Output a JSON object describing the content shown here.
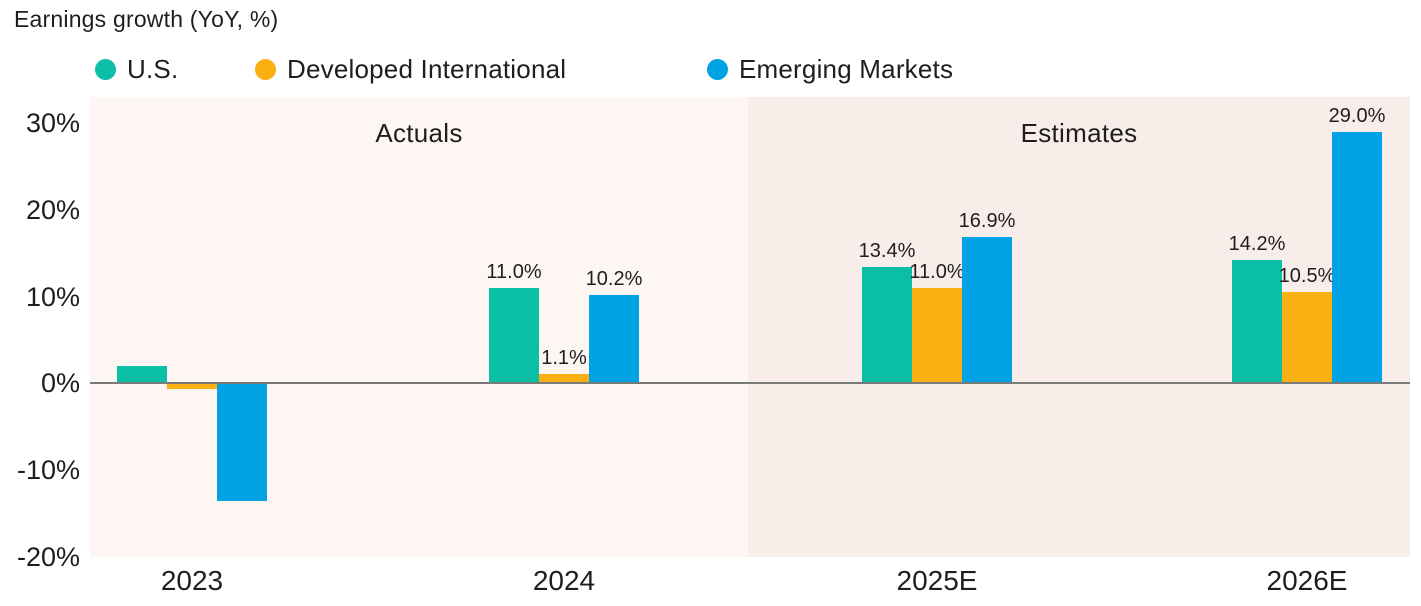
{
  "title": "Earnings growth (YoY, %)",
  "legend": [
    {
      "label": "U.S.",
      "color": "#0ABFA5"
    },
    {
      "label": "Developed International",
      "color": "#F9B013"
    },
    {
      "label": "Emerging Markets",
      "color": "#01A3E4"
    }
  ],
  "regions": [
    {
      "label": "Actuals",
      "bg": "#FDF6F3",
      "categories": [
        "2023",
        "2024"
      ]
    },
    {
      "label": "Estimates",
      "bg": "#F9EDE9",
      "categories": [
        "2025E",
        "2026E"
      ]
    }
  ],
  "chart_data": {
    "type": "bar",
    "title": "Earnings growth (YoY, %)",
    "categories": [
      "2023",
      "2024",
      "2025E",
      "2026E"
    ],
    "series": [
      {
        "name": "U.S.",
        "color": "#0ABFA5",
        "values": [
          2.0,
          11.0,
          13.4,
          14.2
        ],
        "labels": [
          "",
          "11.0%",
          "13.4%",
          "14.2%"
        ]
      },
      {
        "name": "Developed International",
        "color": "#F9B013",
        "values": [
          -0.6,
          1.1,
          11.0,
          10.5
        ],
        "labels": [
          "",
          "1.1%",
          "11.0%",
          "10.5%"
        ]
      },
      {
        "name": "Emerging Markets",
        "color": "#01A3E4",
        "values": [
          -13.5,
          10.2,
          16.9,
          29.0
        ],
        "labels": [
          "",
          "10.2%",
          "16.9%",
          "29.0%"
        ]
      }
    ],
    "y_ticks": [
      {
        "label": "30%",
        "value": 30
      },
      {
        "label": "20%",
        "value": 20
      },
      {
        "label": "10%",
        "value": 10
      },
      {
        "label": "0%",
        "value": 0
      },
      {
        "label": "-10%",
        "value": -10
      },
      {
        "label": "-20%",
        "value": -20
      }
    ],
    "ylim": [
      -20,
      33
    ],
    "grid": false,
    "legend_position": "top",
    "axis_line_color": "#7a7a7a"
  }
}
